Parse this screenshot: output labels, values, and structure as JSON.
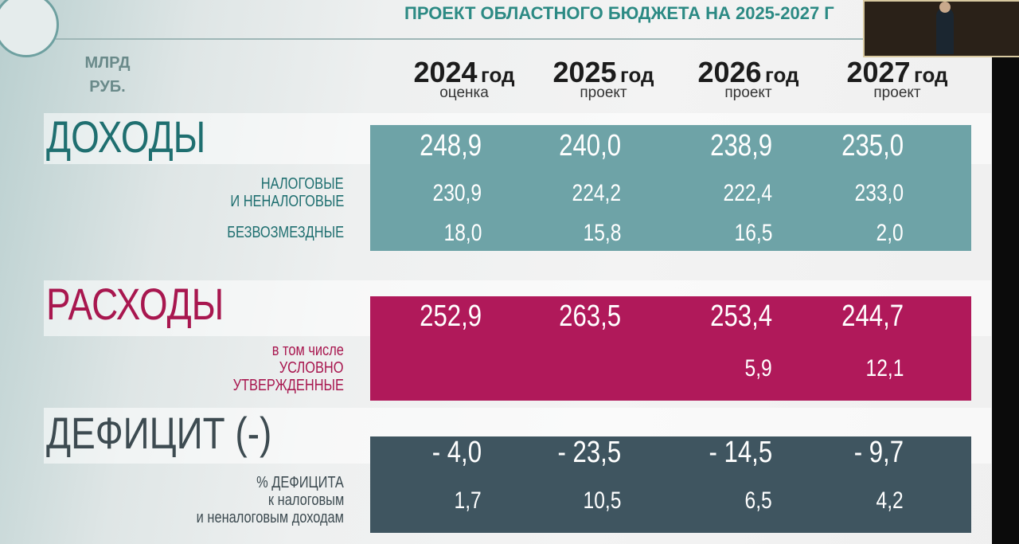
{
  "header": {
    "title": "ПРОЕКТ ОБЛАСТНОГО БЮДЖЕТА НА 2025-2027 Г",
    "unit": [
      "МЛРД",
      "РУБ."
    ]
  },
  "columns": [
    {
      "year": "2024",
      "suffix": "год",
      "note": "оценка"
    },
    {
      "year": "2025",
      "suffix": "год",
      "note": "проект"
    },
    {
      "year": "2026",
      "suffix": "год",
      "note": "проект"
    },
    {
      "year": "2027",
      "suffix": "год",
      "note": "проект"
    }
  ],
  "sections": [
    {
      "label": "ДОХОДЫ",
      "values": [
        "248,9",
        "240,0",
        "238,9",
        "235,0"
      ],
      "rows": [
        {
          "label": [
            "НАЛОГОВЫЕ",
            "И НЕНАЛОГОВЫЕ"
          ],
          "values": [
            "230,9",
            "224,2",
            "222,4",
            "233,0"
          ]
        },
        {
          "label": [
            "БЕЗВОЗМЕЗДНЫЕ"
          ],
          "values": [
            "18,0",
            "15,8",
            "16,5",
            "2,0"
          ]
        }
      ]
    },
    {
      "label": "РАСХОДЫ",
      "values": [
        "252,9",
        "263,5",
        "253,4",
        "244,7"
      ],
      "rows": [
        {
          "label": [
            "в том числе",
            "УСЛОВНО",
            "УТВЕРЖДЕННЫЕ"
          ],
          "values": [
            null,
            null,
            "5,9",
            "12,1"
          ]
        }
      ]
    },
    {
      "label": "ДЕФИЦИТ (-)",
      "values": [
        "- 4,0",
        "- 23,5",
        "- 14,5",
        "- 9,7"
      ],
      "rows": [
        {
          "label": [
            "% ДЕФИЦИТА",
            "к налоговым",
            "и неналоговым доходам"
          ],
          "values": [
            "1,7",
            "10,5",
            "6,5",
            "4,2"
          ]
        }
      ]
    }
  ]
}
